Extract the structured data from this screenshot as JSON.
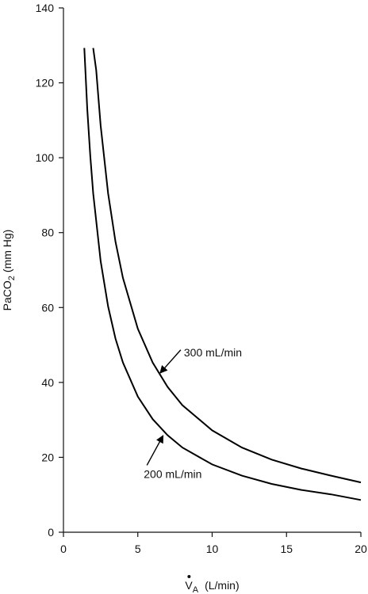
{
  "chart_data": {
    "type": "line",
    "title": "",
    "xlabel_main": "V",
    "xlabel_sub": "A",
    "xlabel_units": "(L/min)",
    "ylabel_main": "PaCO",
    "ylabel_sub": "2",
    "ylabel_units": "(mm Hg)",
    "xlim": [
      0,
      20
    ],
    "ylim": [
      0,
      140
    ],
    "x_ticks": [
      0,
      5,
      10,
      15,
      20
    ],
    "y_ticks": [
      0,
      20,
      40,
      60,
      80,
      100,
      120,
      140
    ],
    "grid": false,
    "series": [
      {
        "name": "200 mL/min",
        "x": [
          1.4,
          1.6,
          1.8,
          2.0,
          2.5,
          3.0,
          3.5,
          4.0,
          5.0,
          6.0,
          7.0,
          8.0,
          10.0,
          12.0,
          14.0,
          16.0,
          18.0,
          20.0
        ],
        "y": [
          129.3,
          113.1,
          100.6,
          90.5,
          72.4,
          60.3,
          51.7,
          45.3,
          36.2,
          30.2,
          25.9,
          22.6,
          18.1,
          15.1,
          12.9,
          11.3,
          10.1,
          8.6
        ],
        "label_x": 5.4,
        "label_y": 14.5,
        "arrow_tip": [
          6.7,
          25.8
        ]
      },
      {
        "name": "300 mL/min",
        "x": [
          2.0,
          2.2,
          2.5,
          3.0,
          3.5,
          4.0,
          5.0,
          6.0,
          7.0,
          8.0,
          10.0,
          12.0,
          14.0,
          16.0,
          18.0,
          20.0
        ],
        "y": [
          129.3,
          123.4,
          108.6,
          90.5,
          77.6,
          67.9,
          54.3,
          45.3,
          38.8,
          33.9,
          27.2,
          22.6,
          19.4,
          17.0,
          15.1,
          13.3
        ],
        "label_x": 8.1,
        "label_y": 47,
        "arrow_tip": [
          6.5,
          42.5
        ]
      }
    ]
  }
}
